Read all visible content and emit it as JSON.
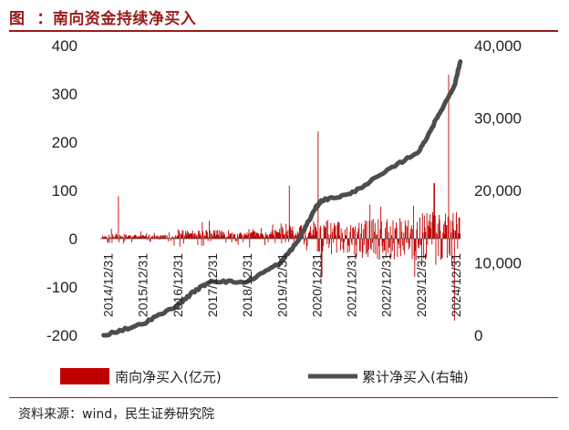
{
  "header": {
    "title": "图  ：南向资金持续净买入"
  },
  "footer": {
    "source": "资料来源：wind，民生证券研究院"
  },
  "colors": {
    "bars": "#c00000",
    "line": "#4d4d4d",
    "accent": "#9a1b1b"
  },
  "chart_data": {
    "type": "bar+line",
    "title": "南向资金持续净买入",
    "x_ticks": [
      "2014/12/31",
      "2015/12/31",
      "2016/12/31",
      "2017/12/31",
      "2018/12/31",
      "2019/12/31",
      "2020/12/31",
      "2021/12/31",
      "2022/12/31",
      "2023/12/31",
      "2024/12/31"
    ],
    "y_left": {
      "range": [
        -200,
        400
      ],
      "ticks": [
        "400",
        "300",
        "200",
        "100",
        "0",
        "-100",
        "-200"
      ]
    },
    "y_right": {
      "range": [
        0,
        40000
      ],
      "ticks": [
        "40,000",
        "30,000",
        "20,000",
        "10,000",
        "0"
      ]
    },
    "series": [
      {
        "name": "南向净买入(亿元)",
        "type": "bar",
        "axis": "left",
        "peaks": [
          {
            "x": "2015-04",
            "value": 88
          },
          {
            "x": "2020-03",
            "value": 110
          },
          {
            "x": "2021-01",
            "value": 222
          },
          {
            "x": "2021-02",
            "value": -80
          },
          {
            "x": "2024-05",
            "value": 115
          },
          {
            "x": "2024-10",
            "value": 340
          },
          {
            "x": "2024-12",
            "value": -170
          }
        ]
      },
      {
        "name": "累计净买入(右轴)",
        "type": "line",
        "axis": "right",
        "points": [
          {
            "x": "2014-11",
            "value": 0
          },
          {
            "x": "2015-12",
            "value": 1500
          },
          {
            "x": "2016-12",
            "value": 4000
          },
          {
            "x": "2017-06",
            "value": 6000
          },
          {
            "x": "2017-12",
            "value": 7500
          },
          {
            "x": "2018-12",
            "value": 7300
          },
          {
            "x": "2019-12",
            "value": 10000
          },
          {
            "x": "2020-06",
            "value": 13000
          },
          {
            "x": "2020-12",
            "value": 17500
          },
          {
            "x": "2021-02",
            "value": 18600
          },
          {
            "x": "2021-12",
            "value": 19500
          },
          {
            "x": "2022-12",
            "value": 22500
          },
          {
            "x": "2023-12",
            "value": 25500
          },
          {
            "x": "2024-06",
            "value": 30000
          },
          {
            "x": "2024-12",
            "value": 34500
          },
          {
            "x": "2025-02",
            "value": 37800
          }
        ]
      }
    ],
    "legend": {
      "position": "bottom",
      "entries": [
        "南向净买入(亿元)",
        "累计净买入(右轴)"
      ]
    }
  }
}
